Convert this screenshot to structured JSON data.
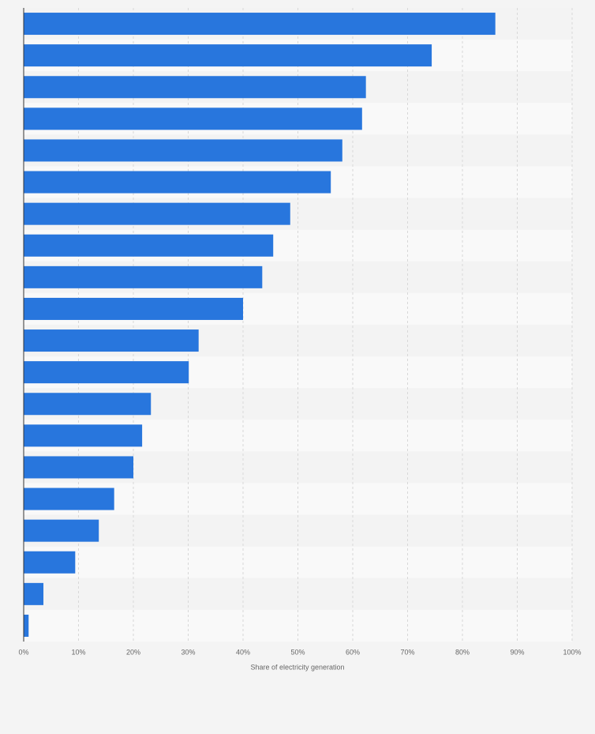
{
  "chart_data": {
    "type": "bar",
    "orientation": "horizontal",
    "categories": [
      null,
      null,
      null,
      null,
      null,
      null,
      null,
      null,
      null,
      null,
      null,
      null,
      null,
      null,
      null,
      null,
      null,
      null,
      null,
      null
    ],
    "values": [
      86.0,
      74.4,
      62.4,
      61.7,
      58.1,
      56.0,
      48.6,
      45.5,
      43.5,
      40.0,
      31.9,
      30.1,
      23.2,
      21.6,
      20.0,
      16.5,
      13.7,
      9.4,
      3.6,
      0.9
    ],
    "color": "#2876dd",
    "xlabel": "Share of electricity generation",
    "xlim": [
      0,
      100
    ],
    "xticks": [
      {
        "value": 0,
        "label": "0%"
      },
      {
        "value": 10,
        "label": "10%"
      },
      {
        "value": 20,
        "label": "20%"
      },
      {
        "value": 30,
        "label": "30%"
      },
      {
        "value": 40,
        "label": "40%"
      },
      {
        "value": 50,
        "label": "50%"
      },
      {
        "value": 60,
        "label": "60%"
      },
      {
        "value": 70,
        "label": "70%"
      },
      {
        "value": 80,
        "label": "80%"
      },
      {
        "value": 90,
        "label": "90%"
      },
      {
        "value": 100,
        "label": "100%"
      }
    ],
    "grid": true
  }
}
